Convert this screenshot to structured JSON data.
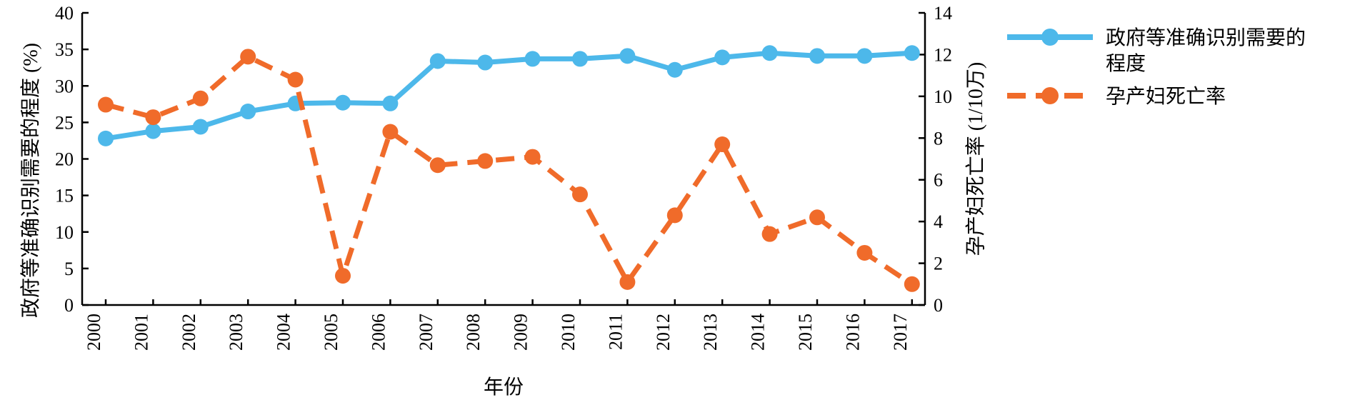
{
  "chart_data": {
    "type": "line",
    "x": [
      "2000",
      "2001",
      "2002",
      "2003",
      "2004",
      "2005",
      "2006",
      "2007",
      "2008",
      "2009",
      "2010",
      "2011",
      "2012",
      "2013",
      "2014",
      "2015",
      "2016",
      "2017"
    ],
    "xlabel": "年份",
    "ylabel_left": "政府等准确识别需要的程度 (%)",
    "ylabel_right": "孕产妇死亡率 (1/10万)",
    "ylim_left": [
      0,
      40
    ],
    "ylim_right": [
      0,
      14
    ],
    "yticks_left": [
      "0",
      "5",
      "10",
      "15",
      "20",
      "25",
      "30",
      "35",
      "40"
    ],
    "yticks_right": [
      "0",
      "2",
      "4",
      "6",
      "8",
      "10",
      "12",
      "14"
    ],
    "grid": false,
    "legend_position": "right",
    "series": [
      {
        "name": "政府等准确识别需要的程度",
        "legend_lines": [
          "政府等准确识别需要的",
          "程度"
        ],
        "axis": "left",
        "color": "#4db8ea",
        "style": "solid",
        "values": [
          22.8,
          23.8,
          24.4,
          26.5,
          27.6,
          27.7,
          27.6,
          33.4,
          33.2,
          33.7,
          33.7,
          34.1,
          32.2,
          33.9,
          34.5,
          34.1,
          34.1,
          34.5
        ]
      },
      {
        "name": "孕产妇死亡率",
        "legend_lines": [
          "孕产妇死亡率"
        ],
        "axis": "right",
        "color": "#f06b2a",
        "style": "dashed",
        "values": [
          9.6,
          9.0,
          9.9,
          11.9,
          10.8,
          1.4,
          8.3,
          6.7,
          6.9,
          7.1,
          5.3,
          1.1,
          4.3,
          7.7,
          3.4,
          4.2,
          2.5,
          1.0
        ]
      }
    ]
  }
}
